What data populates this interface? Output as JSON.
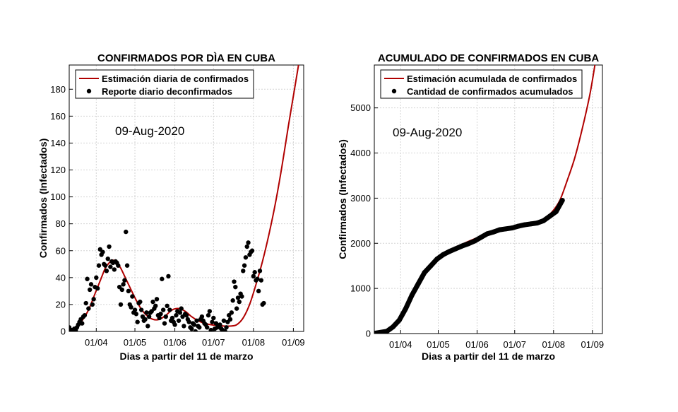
{
  "chart_data": [
    {
      "type": "scatter",
      "title": "CONFIRMADOS  POR DÌA EN CUBA",
      "xlabel": "Dias a partir del 11 de marzo",
      "ylabel": "Confirmados (Infectados)",
      "xlim": [
        0,
        182
      ],
      "ylim": [
        0,
        198
      ],
      "xticks": [
        {
          "day": 21,
          "label": "01/04"
        },
        {
          "day": 51,
          "label": "01/05"
        },
        {
          "day": 82,
          "label": "01/06"
        },
        {
          "day": 112,
          "label": "01/07"
        },
        {
          "day": 143,
          "label": "01/08"
        },
        {
          "day": 174,
          "label": "01/09"
        }
      ],
      "yticks": [
        0,
        20,
        40,
        60,
        80,
        100,
        120,
        140,
        160,
        180
      ],
      "annotation": "09-Aug-2020",
      "legend": {
        "placement": "top-left",
        "entries": [
          "Estimación diaria de confirmados",
          "Reporte diario deconfirmados"
        ]
      },
      "series": [
        {
          "name": "Estimación diaria de confirmados",
          "color": "#b00000",
          "x": [
            0,
            5,
            10,
            15,
            20,
            25,
            28,
            31,
            34,
            37,
            40,
            45,
            50,
            55,
            60,
            65,
            70,
            75,
            80,
            85,
            90,
            95,
            100,
            105,
            110,
            115,
            120,
            125,
            130,
            135,
            140,
            145,
            150,
            155,
            160,
            165,
            170,
            174,
            178
          ],
          "y": [
            0,
            3,
            8,
            16,
            28,
            40,
            47,
            51,
            53,
            51,
            47,
            37,
            27,
            18,
            12,
            9,
            9,
            12,
            16,
            17,
            15,
            11,
            8,
            6,
            5,
            4.5,
            4,
            4,
            5,
            10,
            20,
            35,
            52,
            72,
            95,
            122,
            152,
            175,
            198
          ]
        },
        {
          "name": "Reporte diario deconfirmados",
          "color": "#000000",
          "x": [
            0,
            1,
            2,
            3,
            4,
            5,
            6,
            7,
            8,
            9,
            10,
            11,
            12,
            13,
            14,
            15,
            16,
            17,
            18,
            19,
            20,
            21,
            22,
            23,
            24,
            25,
            26,
            27,
            28,
            29,
            30,
            31,
            32,
            33,
            34,
            35,
            36,
            37,
            38,
            39,
            40,
            41,
            42,
            43,
            44,
            45,
            46,
            47,
            48,
            49,
            50,
            51,
            52,
            53,
            54,
            55,
            56,
            57,
            58,
            59,
            60,
            61,
            62,
            63,
            64,
            65,
            66,
            67,
            68,
            69,
            70,
            71,
            72,
            73,
            74,
            75,
            76,
            77,
            78,
            79,
            80,
            81,
            82,
            83,
            84,
            85,
            86,
            87,
            88,
            89,
            90,
            91,
            92,
            93,
            94,
            95,
            96,
            97,
            98,
            99,
            100,
            101,
            102,
            103,
            104,
            105,
            106,
            107,
            108,
            109,
            110,
            111,
            112,
            113,
            114,
            115,
            116,
            117,
            118,
            119,
            120,
            121,
            122,
            123,
            124,
            125,
            126,
            127,
            128,
            129,
            130,
            131,
            132,
            133,
            134,
            135,
            136,
            137,
            138,
            139,
            140,
            141,
            142,
            143,
            144,
            145,
            146,
            147,
            148,
            149,
            150,
            151
          ],
          "y": [
            3,
            0,
            1,
            0,
            2,
            1,
            3,
            5,
            7,
            9,
            6,
            11,
            12,
            21,
            39,
            17,
            31,
            35,
            20,
            24,
            33,
            40,
            32,
            49,
            61,
            57,
            59,
            50,
            49,
            45,
            54,
            63,
            48,
            52,
            51,
            46,
            52,
            51,
            49,
            33,
            20,
            31,
            35,
            38,
            74,
            49,
            30,
            20,
            18,
            26,
            14,
            16,
            13,
            7,
            21,
            22,
            16,
            11,
            8,
            9,
            14,
            4,
            11,
            14,
            15,
            22,
            17,
            19,
            24,
            12,
            10,
            13,
            39,
            16,
            6,
            11,
            19,
            41,
            16,
            8,
            10,
            7,
            5,
            12,
            15,
            8,
            14,
            17,
            11,
            4,
            13,
            12,
            9,
            7,
            3,
            2,
            6,
            5,
            0,
            8,
            4,
            3,
            9,
            11,
            8,
            6,
            5,
            3,
            12,
            15,
            1,
            7,
            10,
            2,
            6,
            3,
            4,
            5,
            2,
            1,
            8,
            0,
            3,
            7,
            12,
            9,
            14,
            23,
            37,
            33,
            17,
            25,
            22,
            28,
            26,
            45,
            49,
            55,
            63,
            66,
            57,
            59,
            60,
            41,
            44,
            38,
            39,
            30,
            45,
            38,
            20,
            21
          ]
        }
      ]
    },
    {
      "type": "scatter",
      "title": "ACUMULADO DE CONFIRMADOS  EN CUBA",
      "xlabel": "Dias a partir del 11 de marzo",
      "ylabel": "Confirmados (Infectados)",
      "xlim": [
        0,
        182
      ],
      "ylim": [
        0,
        5950
      ],
      "xticks": [
        {
          "day": 21,
          "label": "01/04"
        },
        {
          "day": 51,
          "label": "01/05"
        },
        {
          "day": 82,
          "label": "01/06"
        },
        {
          "day": 112,
          "label": "01/07"
        },
        {
          "day": 143,
          "label": "01/08"
        },
        {
          "day": 174,
          "label": "01/09"
        }
      ],
      "yticks": [
        0,
        1000,
        2000,
        3000,
        4000,
        5000
      ],
      "annotation": "09-Aug-2020",
      "legend": {
        "placement": "top-left",
        "entries": [
          "Estimación acumulada de confirmados",
          "Cantidad de confirmados acumulados"
        ]
      },
      "series": [
        {
          "name": "Estimación acumulada de confirmados",
          "color": "#b00000",
          "x": [
            0,
            10,
            20,
            30,
            40,
            50,
            60,
            70,
            80,
            90,
            100,
            110,
            120,
            130,
            136,
            142,
            148,
            154,
            160,
            166,
            172,
            176
          ],
          "y": [
            0,
            60,
            300,
            850,
            1350,
            1650,
            1850,
            1980,
            2100,
            2210,
            2290,
            2340,
            2400,
            2450,
            2560,
            2700,
            2950,
            3400,
            3900,
            4550,
            5300,
            5950
          ]
        },
        {
          "name": "Cantidad de confirmados acumulados",
          "color": "#000000",
          "x": [
            0,
            10,
            15,
            20,
            25,
            30,
            35,
            40,
            45,
            50,
            55,
            60,
            65,
            70,
            75,
            80,
            85,
            90,
            95,
            100,
            105,
            110,
            115,
            120,
            125,
            130,
            135,
            140,
            145,
            150
          ],
          "y": [
            5,
            50,
            150,
            300,
            550,
            850,
            1100,
            1350,
            1500,
            1650,
            1750,
            1820,
            1880,
            1940,
            1990,
            2050,
            2130,
            2210,
            2250,
            2300,
            2320,
            2340,
            2380,
            2410,
            2430,
            2450,
            2500,
            2600,
            2700,
            2950
          ]
        }
      ]
    }
  ]
}
